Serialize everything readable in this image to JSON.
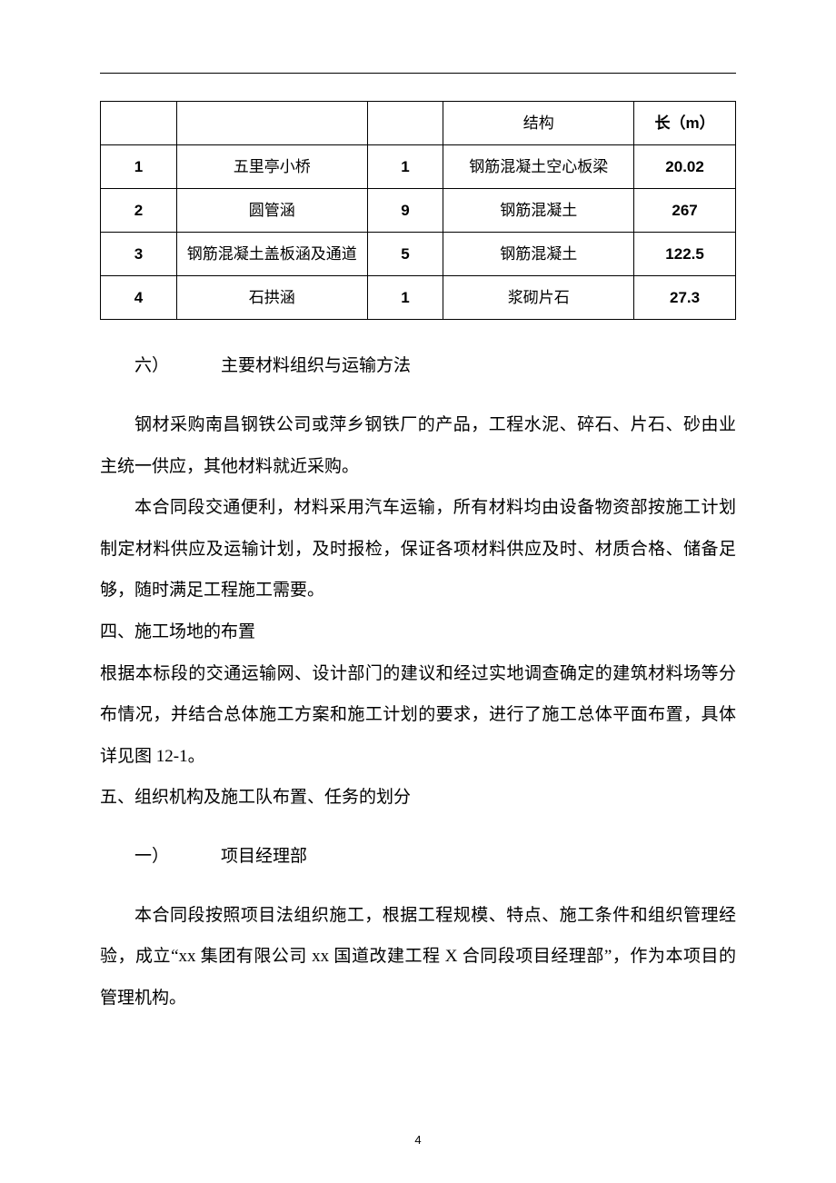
{
  "table": {
    "header": {
      "col4": "结构",
      "col5": "长（m）"
    },
    "rows": [
      {
        "n": "1",
        "name": "五里亭小桥",
        "qty": "1",
        "struct": "钢筋混凝土空心板梁",
        "len": "20.02"
      },
      {
        "n": "2",
        "name": "圆管涵",
        "qty": "9",
        "struct": "钢筋混凝土",
        "len": "267"
      },
      {
        "n": "3",
        "name": "钢筋混凝土盖板涵及通道",
        "qty": "5",
        "struct": "钢筋混凝土",
        "len": "122.5"
      },
      {
        "n": "4",
        "name": "石拱涵",
        "qty": "1",
        "struct": "浆砌片石",
        "len": "27.3"
      }
    ]
  },
  "sec6_label": "六）",
  "sec6_title": "主要材料组织与运输方法",
  "p1": "钢材采购南昌钢铁公司或萍乡钢铁厂的产品，工程水泥、碎石、片石、砂由业主统一供应，其他材料就近采购。",
  "p2": "本合同段交通便利，材料采用汽车运输，所有材料均由设备物资部按施工计划制定材料供应及运输计划，及时报检，保证各项材料供应及时、材质合格、储备足够，随时满足工程施工需要。",
  "h4": "四、施工场地的布置",
  "p3": "根据本标段的交通运输网、设计部门的建议和经过实地调查确定的建筑材料场等分布情况，并结合总体施工方案和施工计划的要求，进行了施工总体平面布置，具体详见图 12-1。",
  "h5": "五、组织机构及施工队布置、任务的划分",
  "sec1_label": "一）",
  "sec1_title": "项目经理部",
  "p4": "本合同段按照项目法组织施工，根据工程规模、特点、施工条件和组织管理经验，成立“xx 集团有限公司 xx 国道改建工程 X 合同段项目经理部”，作为本项目的管理机构。",
  "page_number": "4",
  "col_widths": [
    "12%",
    "30%",
    "12%",
    "30%",
    "16%"
  ]
}
